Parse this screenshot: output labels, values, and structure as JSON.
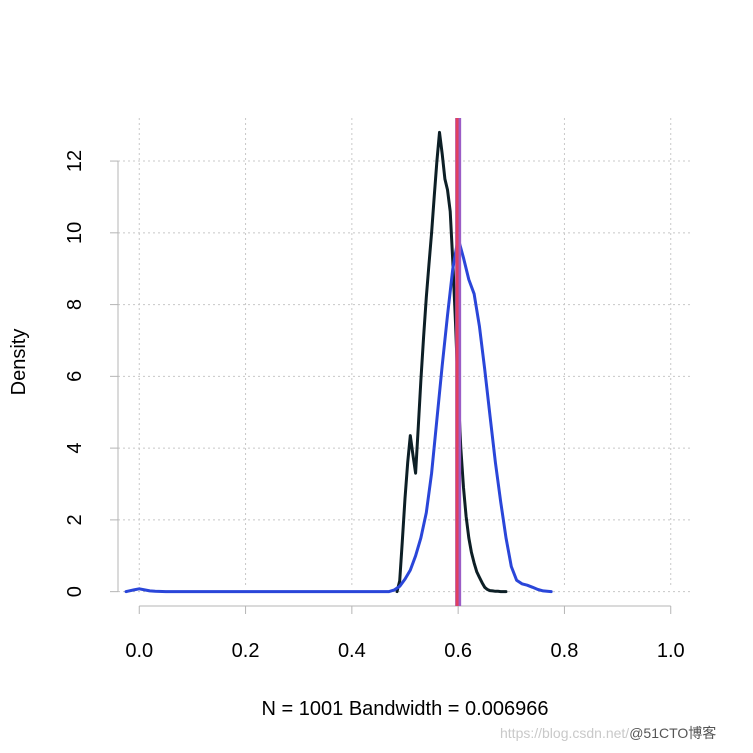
{
  "chart_data": {
    "type": "line",
    "title": "",
    "xlabel": "N = 1001   Bandwidth = 0.006966",
    "ylabel": "Density",
    "xlim": [
      -0.04,
      1.04
    ],
    "ylim": [
      -0.4,
      13.2
    ],
    "x_ticks": [
      0.0,
      0.2,
      0.4,
      0.6,
      0.8,
      1.0
    ],
    "x_tick_labels": [
      "0.0",
      "0.2",
      "0.4",
      "0.6",
      "0.8",
      "1.0"
    ],
    "y_ticks": [
      0,
      2,
      4,
      6,
      8,
      10,
      12
    ],
    "y_tick_labels": [
      "0",
      "2",
      "4",
      "6",
      "8",
      "10",
      "12"
    ],
    "grid": true,
    "legend": "none",
    "series": [
      {
        "color": "#0d1f26",
        "x": [
          0.485,
          0.49,
          0.495,
          0.5,
          0.505,
          0.51,
          0.515,
          0.52,
          0.525,
          0.53,
          0.535,
          0.54,
          0.545,
          0.55,
          0.555,
          0.56,
          0.565,
          0.57,
          0.575,
          0.58,
          0.585,
          0.59,
          0.595,
          0.6,
          0.605,
          0.61,
          0.615,
          0.62,
          0.625,
          0.63,
          0.635,
          0.64,
          0.645,
          0.65,
          0.655,
          0.66,
          0.665,
          0.67,
          0.675,
          0.68,
          0.69
        ],
        "y": [
          0.0,
          0.3,
          1.4,
          2.6,
          3.6,
          4.35,
          3.8,
          3.3,
          4.6,
          5.9,
          7.1,
          8.2,
          9.1,
          10.0,
          11.0,
          12.0,
          12.8,
          12.2,
          11.5,
          11.2,
          10.6,
          9.2,
          7.5,
          5.6,
          4.0,
          2.9,
          2.1,
          1.5,
          1.1,
          0.8,
          0.55,
          0.4,
          0.25,
          0.12,
          0.06,
          0.03,
          0.02,
          0.01,
          0.01,
          0.0,
          0.0
        ]
      },
      {
        "color": "#2a46d9",
        "x": [
          -0.025,
          -0.01,
          0.0,
          0.01,
          0.02,
          0.03,
          0.05,
          0.1,
          0.2,
          0.3,
          0.4,
          0.47,
          0.48,
          0.49,
          0.5,
          0.51,
          0.52,
          0.53,
          0.54,
          0.55,
          0.56,
          0.57,
          0.58,
          0.59,
          0.6,
          0.61,
          0.62,
          0.63,
          0.64,
          0.65,
          0.66,
          0.67,
          0.68,
          0.69,
          0.7,
          0.71,
          0.72,
          0.73,
          0.74,
          0.75,
          0.76,
          0.775
        ],
        "y": [
          0.0,
          0.05,
          0.08,
          0.05,
          0.02,
          0.01,
          0.0,
          0.0,
          0.0,
          0.0,
          0.0,
          0.0,
          0.05,
          0.15,
          0.35,
          0.6,
          1.0,
          1.5,
          2.2,
          3.3,
          4.8,
          6.3,
          7.7,
          9.0,
          9.85,
          9.3,
          8.7,
          8.3,
          7.4,
          6.2,
          4.9,
          3.6,
          2.5,
          1.5,
          0.7,
          0.32,
          0.22,
          0.18,
          0.12,
          0.06,
          0.02,
          0.0
        ]
      }
    ],
    "reference_lines": [
      {
        "type": "vertical",
        "x": 0.6,
        "color": "#9b5cc6"
      },
      {
        "type": "vertical",
        "x": 0.598,
        "color": "#e04060"
      }
    ]
  },
  "watermark": {
    "site": "https://blog.csdn.net/",
    "brand": "@51CTO博客"
  }
}
